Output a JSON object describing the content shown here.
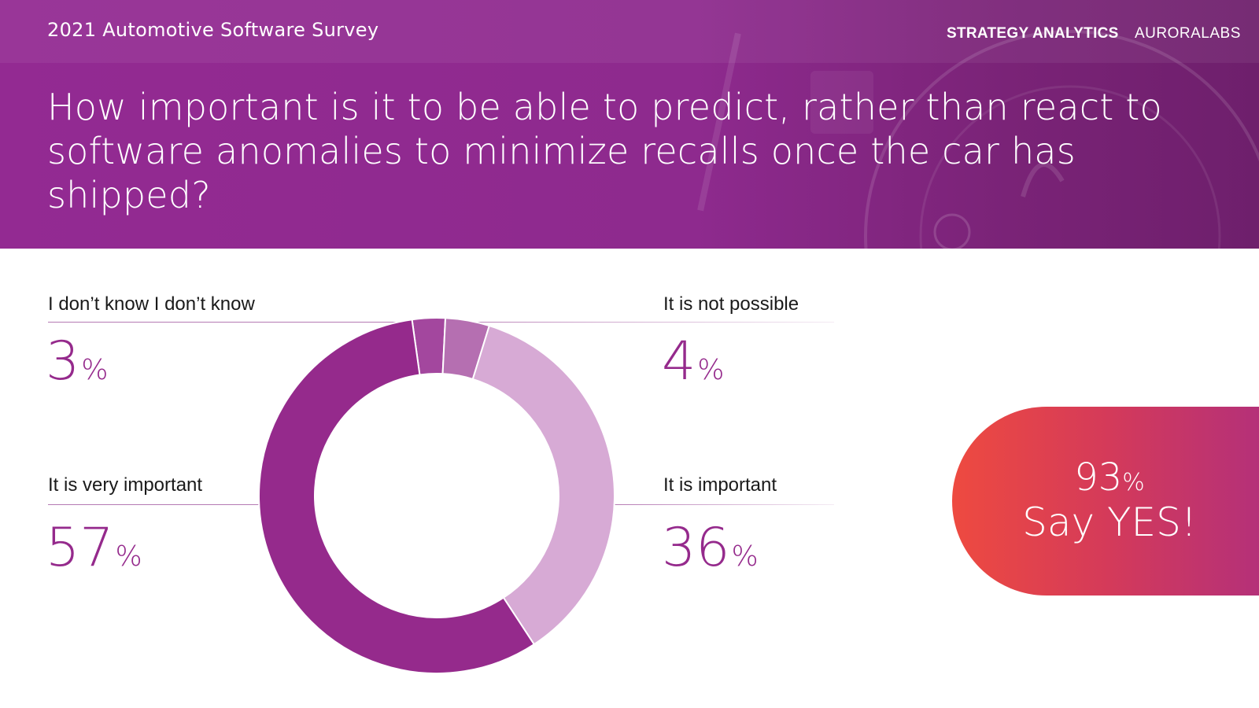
{
  "header": {
    "survey_title": "2021 Automotive Software Survey",
    "brand_left": "STRATEGY ANALYTICS",
    "brand_right": "AURORALABS",
    "question": "How important is it to be able to predict, rather than react to software anomalies to minimize recalls once the car has shipped?"
  },
  "chart_data": {
    "type": "pie",
    "donut": true,
    "categories": [
      "I don’t know I don’t know",
      "It is not possible",
      "It is important",
      "It is very important"
    ],
    "values": [
      3,
      4,
      36,
      57
    ],
    "unit": "%",
    "colors": [
      "#a3479e",
      "#b56fb1",
      "#d7aad5",
      "#952a8c"
    ]
  },
  "labels": {
    "dont_know": {
      "text": "I don’t know I don’t know",
      "value": "3",
      "sign": "%"
    },
    "not_possible": {
      "text": "It is not possible",
      "value": "4",
      "sign": "%"
    },
    "very_important": {
      "text": "It is very important",
      "value": "57",
      "sign": "%"
    },
    "important": {
      "text": "It is important",
      "value": "36",
      "sign": "%"
    }
  },
  "callout": {
    "value": "93",
    "sign": "%",
    "text": "Say YES!"
  },
  "colors": {
    "brand_purple": "#952a8c",
    "header_bg": "#932a92",
    "callout_start": "#ee4a40",
    "callout_end": "#b3307a"
  }
}
